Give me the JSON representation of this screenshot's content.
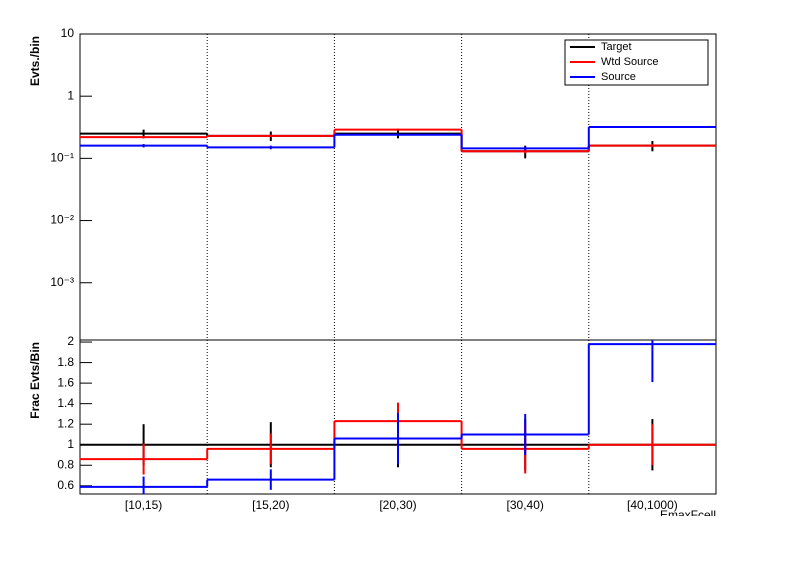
{
  "chart_data": [
    {
      "type": "step",
      "log_y": true,
      "y_label": "Evts./bin",
      "ylim": [
        0.00012,
        10
      ],
      "yticks": [
        {
          "value": 0.001,
          "label": "10⁻³"
        },
        {
          "value": 0.01,
          "label": "10⁻²"
        },
        {
          "value": 0.1,
          "label": "10⁻¹"
        },
        1,
        10
      ],
      "legend": "top-right",
      "grid_x": true,
      "series": [
        {
          "name": "Target",
          "color": "#000000",
          "values": [
            0.25,
            0.23,
            0.25,
            0.13,
            0.16
          ],
          "errors": [
            0.04,
            0.04,
            0.04,
            0.03,
            0.03
          ]
        },
        {
          "name": "Wtd Source",
          "color": "#ff0000",
          "values": [
            0.22,
            0.23,
            0.29,
            0.13,
            0.16
          ],
          "errors": [
            0.01,
            0.01,
            0.01,
            0.01,
            0.01
          ]
        },
        {
          "name": "Source",
          "color": "#0000ff",
          "values": [
            0.16,
            0.15,
            0.24,
            0.145,
            0.32
          ],
          "errors": [
            0.01,
            0.01,
            0.01,
            0.01,
            0.01
          ]
        }
      ]
    },
    {
      "type": "step",
      "log_y": false,
      "y_label": "Frac Evts/Bin",
      "x_label": "EmaxFcell",
      "categories": [
        "[10,15)",
        "[15,20)",
        "[20,30)",
        "[30,40)",
        "[40,1000)"
      ],
      "ylim": [
        0.52,
        2.02
      ],
      "yticks": [
        0.6,
        0.8,
        1,
        1.2,
        1.4,
        1.6,
        1.8,
        2
      ],
      "grid_x": true,
      "series": [
        {
          "name": "Target",
          "color": "#000000",
          "values": [
            1,
            1,
            1,
            1,
            1
          ],
          "errors": [
            0.2,
            0.22,
            0.22,
            0.25,
            0.25
          ]
        },
        {
          "name": "Wtd Source",
          "color": "#ff0000",
          "values": [
            0.86,
            0.96,
            1.23,
            0.96,
            1.0
          ],
          "errors": [
            0.15,
            0.15,
            0.18,
            0.24,
            0.2
          ]
        },
        {
          "name": "Source",
          "color": "#0000ff",
          "values": [
            0.59,
            0.66,
            1.06,
            1.1,
            1.98
          ],
          "errors": [
            0.1,
            0.1,
            0.25,
            0.2,
            0.37
          ]
        }
      ]
    }
  ]
}
